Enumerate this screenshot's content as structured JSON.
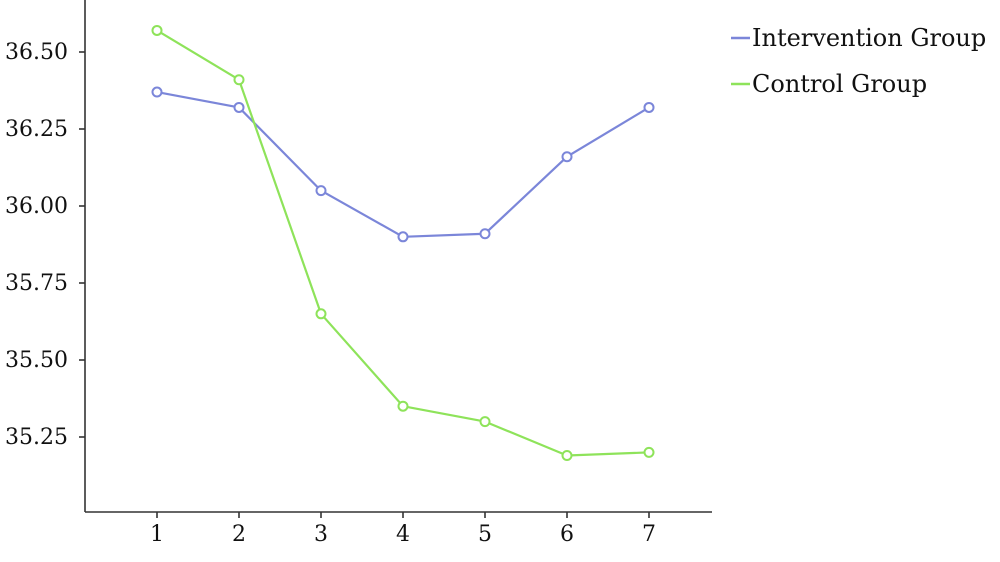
{
  "chart_data": {
    "type": "line",
    "title": "",
    "xlabel": "",
    "ylabel": "",
    "x": [
      "1",
      "2",
      "3",
      "4",
      "5",
      "6",
      "7"
    ],
    "yticks": [
      "35.25",
      "35.50",
      "35.75",
      "36.00",
      "36.25",
      "36.50"
    ],
    "ylim": [
      35.04,
      36.65
    ],
    "grid": false,
    "legend_position": "top-right",
    "series": [
      {
        "name": "Intervention Group",
        "color": "#7b86d9",
        "values": [
          36.37,
          36.32,
          36.05,
          35.9,
          35.91,
          36.16,
          36.32
        ]
      },
      {
        "name": "Control Group",
        "color": "#8ee35a",
        "values": [
          36.57,
          36.41,
          35.65,
          35.35,
          35.3,
          35.19,
          35.2
        ]
      }
    ]
  }
}
